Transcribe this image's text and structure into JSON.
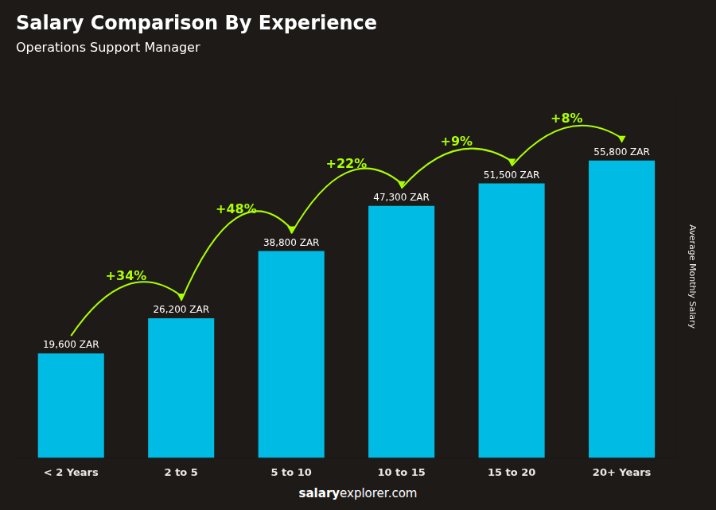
{
  "chart_data": {
    "type": "bar",
    "title": "Salary Comparison By Experience",
    "subtitle": "Operations Support Manager",
    "y_label": "Average Monthly Salary",
    "categories": [
      "< 2 Years",
      "2 to 5",
      "5 to 10",
      "10 to 15",
      "15 to 20",
      "20+ Years"
    ],
    "values": [
      19600,
      26200,
      38800,
      47300,
      51500,
      55800
    ],
    "value_labels": [
      "19,600 ZAR",
      "26,200 ZAR",
      "38,800 ZAR",
      "47,300 ZAR",
      "51,500 ZAR",
      "55,800 ZAR"
    ],
    "data_labels": true,
    "color": "#00bce4",
    "ylim": [
      0,
      68000
    ],
    "tick_labels": "x",
    "grid": false,
    "annotations": [
      {
        "label": "+34%",
        "color": "#aaff00"
      },
      {
        "label": "+48%",
        "color": "#aaff00"
      },
      {
        "label": "+22%",
        "color": "#aaff00"
      },
      {
        "label": "+9%",
        "color": "#aaff00"
      },
      {
        "label": "+8%",
        "color": "#aaff00"
      }
    ],
    "footer": {
      "bold": "salary",
      "normal": "explorer.com"
    }
  }
}
